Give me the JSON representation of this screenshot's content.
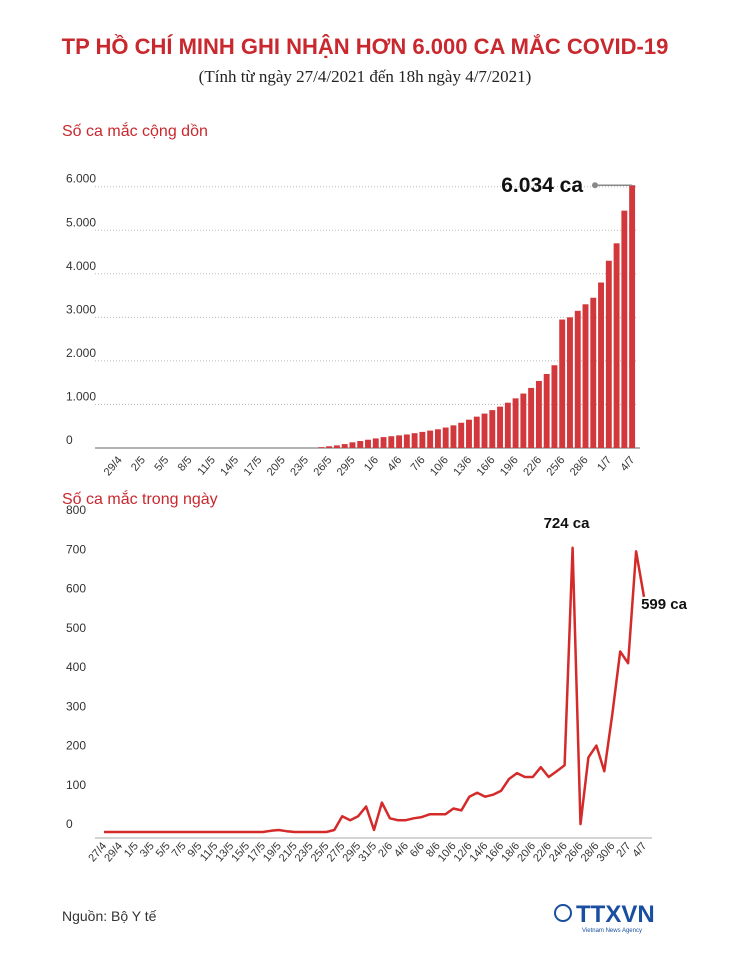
{
  "header": {
    "title": "TP HỒ CHÍ MINH GHI NHẬN HƠN 6.000 CA MẮC COVID-19",
    "subtitle": "(Tính từ ngày 27/4/2021 đến 18h ngày 4/7/2021)"
  },
  "chart_data": [
    {
      "type": "bar",
      "title": "Số ca mắc cộng dồn",
      "color": "#d1373b",
      "grid": true,
      "categories": [
        null,
        null,
        "29/4",
        null,
        null,
        "2/5",
        null,
        null,
        "5/5",
        null,
        null,
        "8/5",
        null,
        null,
        "11/5",
        null,
        null,
        "14/5",
        null,
        null,
        "17/5",
        null,
        null,
        "20/5",
        null,
        null,
        "23/5",
        null,
        null,
        "26/5",
        null,
        null,
        "29/5",
        null,
        null,
        "1/6",
        null,
        null,
        "4/6",
        null,
        null,
        "7/6",
        null,
        null,
        "10/6",
        null,
        null,
        "13/6",
        null,
        null,
        "16/6",
        null,
        null,
        "19/6",
        null,
        null,
        "22/6",
        null,
        null,
        "25/6",
        null,
        null,
        "28/6",
        null,
        null,
        "1/7",
        null,
        null,
        "4/7"
      ],
      "values": [
        0,
        0,
        0,
        0,
        0,
        0,
        0,
        0,
        0,
        0,
        0,
        0,
        0,
        0,
        0,
        0,
        0,
        0,
        0,
        0,
        0,
        0,
        0,
        0,
        0,
        0,
        0,
        0,
        20,
        40,
        60,
        90,
        130,
        160,
        190,
        220,
        250,
        270,
        290,
        310,
        340,
        370,
        400,
        430,
        470,
        520,
        580,
        650,
        720,
        790,
        870,
        950,
        1040,
        1140,
        1250,
        1380,
        1540,
        1700,
        1900,
        2950,
        3000,
        3150,
        3300,
        3450,
        3800,
        4300,
        4700,
        5450,
        6034
      ],
      "value_labels": [
        null,
        null,
        null,
        null,
        null,
        null,
        null,
        null,
        null,
        null,
        null,
        null,
        null,
        null,
        null,
        null,
        null,
        null,
        null,
        null,
        null,
        null,
        null,
        null,
        null,
        null,
        null,
        null,
        null,
        null,
        null,
        null,
        null,
        null,
        null,
        null,
        null,
        null,
        null,
        null,
        null,
        null,
        null,
        null,
        null,
        null,
        null,
        null,
        null,
        null,
        null,
        null,
        null,
        null,
        null,
        null,
        null,
        null,
        null,
        null,
        null,
        null,
        null,
        null,
        null,
        null,
        null,
        null,
        "6.034 ca"
      ],
      "ylim": [
        0,
        6200
      ],
      "yticks": [
        0,
        {
          "value": 1000,
          "label": "1.000"
        },
        {
          "value": 2000,
          "label": "2.000"
        },
        {
          "value": 3000,
          "label": "3.000"
        },
        {
          "value": 4000,
          "label": "4.000"
        },
        {
          "value": 5000,
          "label": "5.000"
        },
        {
          "value": 6000,
          "label": "6.000"
        }
      ]
    },
    {
      "type": "line",
      "title": "Số ca mắc trong ngày",
      "color": "#d42a2a",
      "grid": false,
      "categories": [
        "27/4",
        null,
        "29/4",
        null,
        "1/5",
        null,
        "3/5",
        null,
        "5/5",
        null,
        "7/5",
        null,
        "9/5",
        null,
        "11/5",
        null,
        "13/5",
        null,
        "15/5",
        null,
        "17/5",
        null,
        "19/5",
        null,
        "21/5",
        null,
        "23/5",
        null,
        "25/5",
        null,
        "27/5",
        null,
        "29/5",
        null,
        "31/5",
        null,
        "2/6",
        null,
        "4/6",
        null,
        "6/6",
        null,
        "8/6",
        null,
        "10/6",
        null,
        "12/6",
        null,
        "14/6",
        null,
        "16/6",
        null,
        "18/6",
        null,
        "20/6",
        null,
        "22/6",
        null,
        "24/6",
        null,
        "26/6",
        null,
        "28/6",
        null,
        "30/6",
        null,
        "2/7",
        null,
        "4/7"
      ],
      "values": [
        0,
        0,
        0,
        0,
        0,
        0,
        0,
        0,
        0,
        0,
        0,
        0,
        0,
        0,
        0,
        0,
        0,
        0,
        0,
        0,
        0,
        3,
        5,
        2,
        0,
        0,
        0,
        0,
        0,
        5,
        40,
        30,
        40,
        65,
        5,
        75,
        35,
        30,
        30,
        35,
        38,
        45,
        45,
        45,
        60,
        55,
        90,
        100,
        90,
        95,
        105,
        135,
        150,
        140,
        140,
        165,
        140,
        155,
        170,
        724,
        20,
        190,
        220,
        155,
        300,
        460,
        430,
        715,
        599
      ],
      "value_labels": [
        null,
        null,
        null,
        null,
        null,
        null,
        null,
        null,
        null,
        null,
        null,
        null,
        null,
        null,
        null,
        null,
        null,
        null,
        null,
        null,
        null,
        null,
        null,
        null,
        null,
        null,
        null,
        null,
        null,
        null,
        null,
        null,
        null,
        null,
        null,
        null,
        null,
        null,
        null,
        null,
        null,
        null,
        null,
        null,
        null,
        null,
        null,
        null,
        null,
        null,
        null,
        null,
        null,
        null,
        null,
        null,
        null,
        null,
        null,
        "724 ca",
        null,
        null,
        null,
        null,
        null,
        null,
        null,
        null,
        "599 ca"
      ],
      "ylim": [
        0,
        800
      ],
      "yticks": [
        0,
        100,
        200,
        300,
        400,
        500,
        600,
        700,
        800
      ]
    }
  ],
  "footer": {
    "source": "Nguồn: Bộ Y tế",
    "logo": "TTXVN",
    "logo_sub": "Vietnam News Agency"
  }
}
